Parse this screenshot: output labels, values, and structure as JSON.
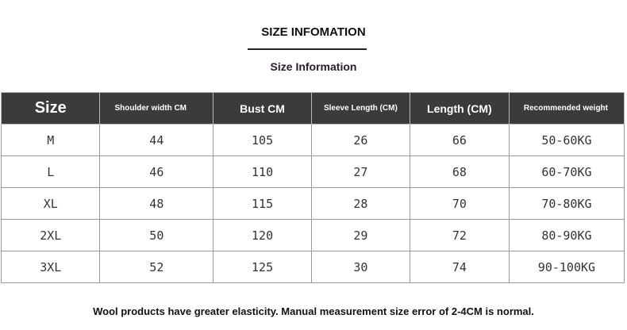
{
  "title": "SIZE INFOMATION",
  "subtitle": "Size Information",
  "headers": [
    "Size",
    "Shoulder width CM",
    "Bust CM",
    "Sleeve Length (CM)",
    "Length (CM)",
    "Recommended weight"
  ],
  "rows": [
    [
      "M",
      "44",
      "105",
      "26",
      "66",
      "50-60KG"
    ],
    [
      "L",
      "46",
      "110",
      "27",
      "68",
      "60-70KG"
    ],
    [
      "XL",
      "48",
      "115",
      "28",
      "70",
      "70-80KG"
    ],
    [
      "2XL",
      "50",
      "120",
      "29",
      "72",
      "80-90KG"
    ],
    [
      "3XL",
      "52",
      "125",
      "30",
      "74",
      "90-100KG"
    ]
  ],
  "footer": "Wool products have greater elasticity. Manual measurement size error of 2-4CM is normal.",
  "colors": {
    "header_bg": "#3b3b3b",
    "header_text": "#ffffff"
  }
}
